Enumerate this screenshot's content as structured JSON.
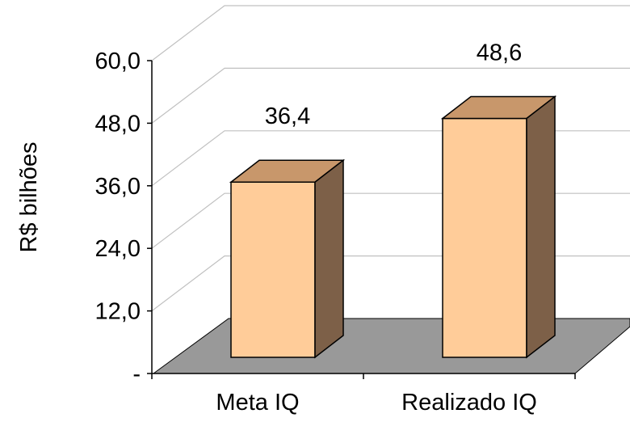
{
  "chart_data": {
    "type": "bar",
    "title": "",
    "xlabel": "",
    "ylabel": "R$ bilhões",
    "categories": [
      "Meta IQ",
      "Realizado IQ"
    ],
    "values": [
      36.4,
      48.6
    ],
    "value_labels": [
      "36,4",
      "48,6"
    ],
    "ylim": [
      0,
      60
    ],
    "yticks": [
      0,
      12,
      24,
      36,
      48,
      60
    ],
    "ytick_labels": [
      "-",
      "12,0",
      "24,0",
      "36,0",
      "48,0",
      "60,0"
    ],
    "grid": true,
    "three_d": true,
    "colors": {
      "bar_front": "#ffcc99",
      "bar_top": "#c8976b",
      "bar_side": "#7d6048",
      "floor": "#999999",
      "gridline": "#c0c0c0"
    }
  }
}
